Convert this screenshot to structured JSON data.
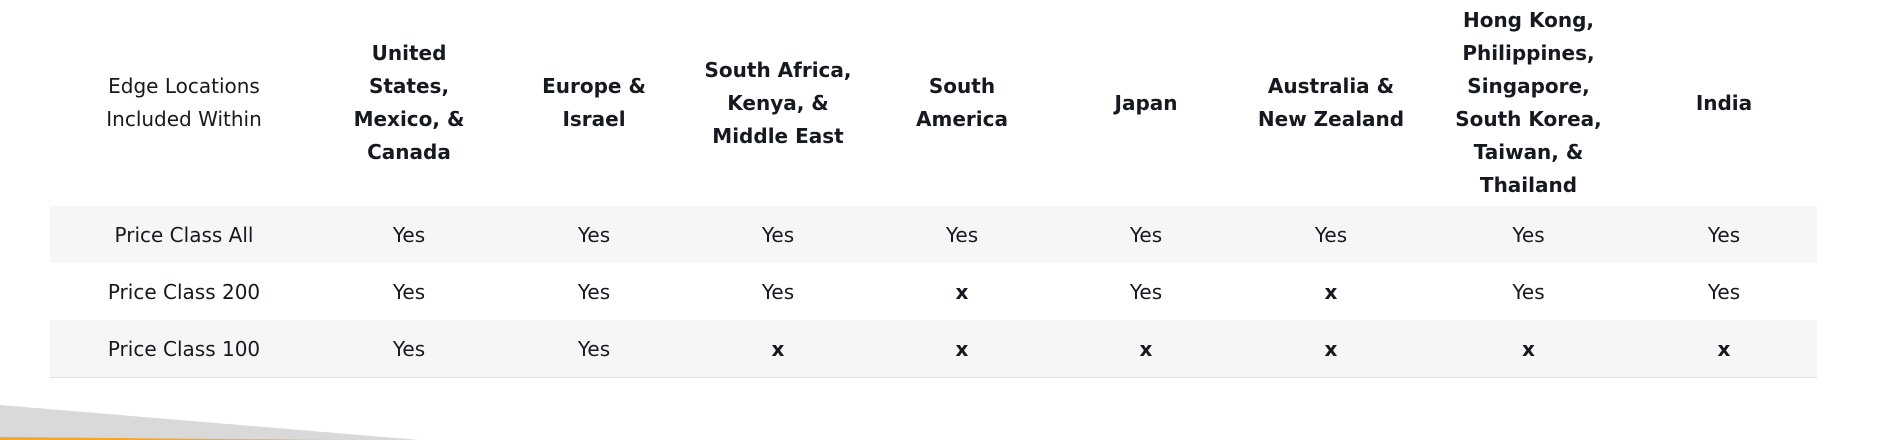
{
  "table": {
    "header_label": "Edge Locations Included Within",
    "columns": [
      "United States, Mexico, & Canada",
      "Europe & Israel",
      "South Africa, Kenya, & Middle East",
      "South America",
      "Japan",
      "Australia & New Zealand",
      "Hong Kong, Philippines, Singapore, South Korea, Taiwan, & Thailand",
      "India"
    ],
    "rows": [
      {
        "label": "Price Class All",
        "values": [
          "Yes",
          "Yes",
          "Yes",
          "Yes",
          "Yes",
          "Yes",
          "Yes",
          "Yes"
        ]
      },
      {
        "label": "Price Class 200",
        "values": [
          "Yes",
          "Yes",
          "Yes",
          "x",
          "Yes",
          "x",
          "Yes",
          "Yes"
        ]
      },
      {
        "label": "Price Class 100",
        "values": [
          "Yes",
          "Yes",
          "x",
          "x",
          "x",
          "x",
          "x",
          "x"
        ]
      }
    ]
  },
  "colors": {
    "row_shade": "#f6f6f6",
    "divider": "#e2e2e2",
    "accent_orange": "#f5a623",
    "decor_gray": "#d9d9d9"
  }
}
